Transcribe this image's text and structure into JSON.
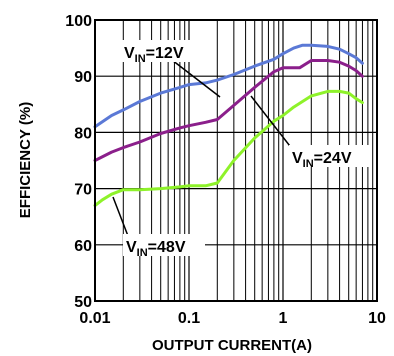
{
  "chart_data": {
    "type": "line",
    "xlabel": "OUTPUT CURRENT(A)",
    "ylabel": "EFFICIENCY (%)",
    "x_scale": "log",
    "xlim": [
      0.01,
      10
    ],
    "ylim": [
      50,
      100
    ],
    "x_ticks": [
      0.01,
      0.1,
      1,
      10
    ],
    "x_tick_labels": [
      "0.01",
      "0.1",
      "1",
      "10"
    ],
    "y_ticks": [
      50,
      60,
      70,
      80,
      90,
      100
    ],
    "y_tick_labels": [
      "50",
      "60",
      "70",
      "80",
      "90",
      "100"
    ],
    "grid": true,
    "series": [
      {
        "name": "VIN=12V",
        "label_main": "V",
        "label_sub": "IN",
        "label_rest": "=12V",
        "color": "#5b79d6",
        "x": [
          0.01,
          0.015,
          0.02,
          0.03,
          0.05,
          0.08,
          0.1,
          0.15,
          0.2,
          0.3,
          0.5,
          0.8,
          1.0,
          1.3,
          1.6,
          2.0,
          3.0,
          4.0,
          5.0,
          6.0,
          7.0
        ],
        "y": [
          81.0,
          83.0,
          84.0,
          85.5,
          87.0,
          88.0,
          88.5,
          88.8,
          89.3,
          90.3,
          91.8,
          93.0,
          94.0,
          95.0,
          95.5,
          95.5,
          95.3,
          94.8,
          94.0,
          93.3,
          92.3
        ]
      },
      {
        "name": "VIN=24V",
        "label_main": "V",
        "label_sub": "IN",
        "label_rest": "=24V",
        "color": "#8b1f8b",
        "x": [
          0.01,
          0.015,
          0.02,
          0.03,
          0.05,
          0.08,
          0.1,
          0.15,
          0.2,
          0.3,
          0.5,
          0.8,
          1.0,
          1.5,
          2.0,
          3.0,
          4.0,
          5.0,
          6.0,
          7.0
        ],
        "y": [
          75.0,
          76.5,
          77.3,
          78.3,
          79.8,
          80.8,
          81.2,
          81.8,
          82.3,
          84.8,
          88.0,
          90.8,
          91.5,
          91.5,
          92.8,
          92.8,
          92.5,
          91.8,
          91.0,
          90.0
        ]
      },
      {
        "name": "VIN=48V",
        "label_main": "V",
        "label_sub": "IN",
        "label_rest": "=48V",
        "color": "#8ef22a",
        "x": [
          0.01,
          0.012,
          0.015,
          0.02,
          0.03,
          0.05,
          0.08,
          0.1,
          0.15,
          0.2,
          0.3,
          0.5,
          0.8,
          1.0,
          1.3,
          2.0,
          3.0,
          4.0,
          5.0,
          6.0,
          7.0
        ],
        "y": [
          67.0,
          68.0,
          69.0,
          69.8,
          69.8,
          70.0,
          70.3,
          70.5,
          70.5,
          71.0,
          75.0,
          79.0,
          82.0,
          83.0,
          84.5,
          86.5,
          87.3,
          87.3,
          87.0,
          86.0,
          85.3
        ]
      }
    ]
  }
}
